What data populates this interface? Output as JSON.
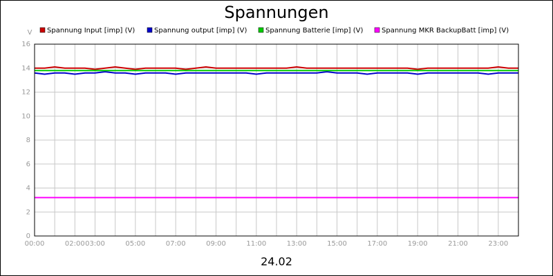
{
  "chart_data": {
    "type": "line",
    "title": "Spannungen",
    "xlabel": "24.02",
    "ylabel": "V",
    "x": [
      0,
      0.5,
      1,
      1.5,
      2,
      2.5,
      3,
      3.5,
      4,
      4.5,
      5,
      5.5,
      6,
      6.5,
      7,
      7.5,
      8,
      8.5,
      9,
      9.5,
      10,
      10.5,
      11,
      11.5,
      12,
      12.5,
      13,
      13.5,
      14,
      14.5,
      15,
      15.5,
      16,
      16.5,
      17,
      17.5,
      18,
      18.5,
      19,
      19.5,
      20,
      20.5,
      21,
      21.5,
      22,
      22.5,
      23,
      23.5,
      24
    ],
    "series": [
      {
        "name": "Spannung Input [imp] (V)",
        "color": "#cc0000",
        "values": [
          14.0,
          14.0,
          14.1,
          14.0,
          14.0,
          14.0,
          13.9,
          14.0,
          14.1,
          14.0,
          13.9,
          14.0,
          14.0,
          14.0,
          14.0,
          13.9,
          14.0,
          14.1,
          14.0,
          14.0,
          14.0,
          14.0,
          14.0,
          14.0,
          14.0,
          14.0,
          14.1,
          14.0,
          14.0,
          14.0,
          14.0,
          14.0,
          14.0,
          14.0,
          14.0,
          14.0,
          14.0,
          14.0,
          13.9,
          14.0,
          14.0,
          14.0,
          14.0,
          14.0,
          14.0,
          14.0,
          14.1,
          14.0,
          14.0
        ]
      },
      {
        "name": "Spannung output [imp] (V)",
        "color": "#0000cc",
        "values": [
          13.6,
          13.5,
          13.6,
          13.6,
          13.5,
          13.6,
          13.6,
          13.7,
          13.6,
          13.6,
          13.5,
          13.6,
          13.6,
          13.6,
          13.5,
          13.6,
          13.6,
          13.6,
          13.6,
          13.6,
          13.6,
          13.6,
          13.5,
          13.6,
          13.6,
          13.6,
          13.6,
          13.6,
          13.6,
          13.7,
          13.6,
          13.6,
          13.6,
          13.5,
          13.6,
          13.6,
          13.6,
          13.6,
          13.5,
          13.6,
          13.6,
          13.6,
          13.6,
          13.6,
          13.6,
          13.5,
          13.6,
          13.6,
          13.6
        ]
      },
      {
        "name": "Spannung Batterie [imp] (V)",
        "color": "#00cc00",
        "values": [
          13.8,
          13.8,
          13.8,
          13.8,
          13.8,
          13.8,
          13.8,
          13.8,
          13.8,
          13.8,
          13.8,
          13.8,
          13.8,
          13.8,
          13.8,
          13.8,
          13.8,
          13.8,
          13.8,
          13.8,
          13.8,
          13.8,
          13.8,
          13.8,
          13.8,
          13.8,
          13.8,
          13.8,
          13.8,
          13.8,
          13.8,
          13.8,
          13.8,
          13.8,
          13.8,
          13.8,
          13.8,
          13.8,
          13.8,
          13.8,
          13.8,
          13.8,
          13.8,
          13.8,
          13.8,
          13.8,
          13.8,
          13.8,
          13.8
        ]
      },
      {
        "name": "Spannung MKR BackupBatt [imp] (V)",
        "color": "#ff00ff",
        "values": [
          3.2,
          3.2,
          3.2,
          3.2,
          3.2,
          3.2,
          3.2,
          3.2,
          3.2,
          3.2,
          3.2,
          3.2,
          3.2,
          3.2,
          3.2,
          3.2,
          3.2,
          3.2,
          3.2,
          3.2,
          3.2,
          3.2,
          3.2,
          3.2,
          3.2,
          3.2,
          3.2,
          3.2,
          3.2,
          3.2,
          3.2,
          3.2,
          3.2,
          3.2,
          3.2,
          3.2,
          3.2,
          3.2,
          3.2,
          3.2,
          3.2,
          3.2,
          3.2,
          3.2,
          3.2,
          3.2,
          3.2,
          3.2,
          3.2
        ]
      }
    ],
    "xlim": [
      0,
      24
    ],
    "xticks": [
      {
        "value": 0,
        "label": "00:00"
      },
      {
        "value": 2,
        "label": "02:00"
      },
      {
        "value": 3,
        "label": "03:00"
      },
      {
        "value": 5,
        "label": "05:00"
      },
      {
        "value": 7,
        "label": "07:00"
      },
      {
        "value": 9,
        "label": "09:00"
      },
      {
        "value": 11,
        "label": "11:00"
      },
      {
        "value": 13,
        "label": "13:00"
      },
      {
        "value": 15,
        "label": "15:00"
      },
      {
        "value": 17,
        "label": "17:00"
      },
      {
        "value": 19,
        "label": "19:00"
      },
      {
        "value": 21,
        "label": "21:00"
      },
      {
        "value": 23,
        "label": "23:00"
      }
    ],
    "xminor": [
      1,
      4,
      6,
      8,
      10,
      12,
      14,
      16,
      18,
      20,
      22,
      24
    ],
    "ylim": [
      0,
      16
    ],
    "yticks": [
      0,
      2,
      4,
      6,
      8,
      10,
      12,
      14,
      16
    ],
    "grid": true
  }
}
